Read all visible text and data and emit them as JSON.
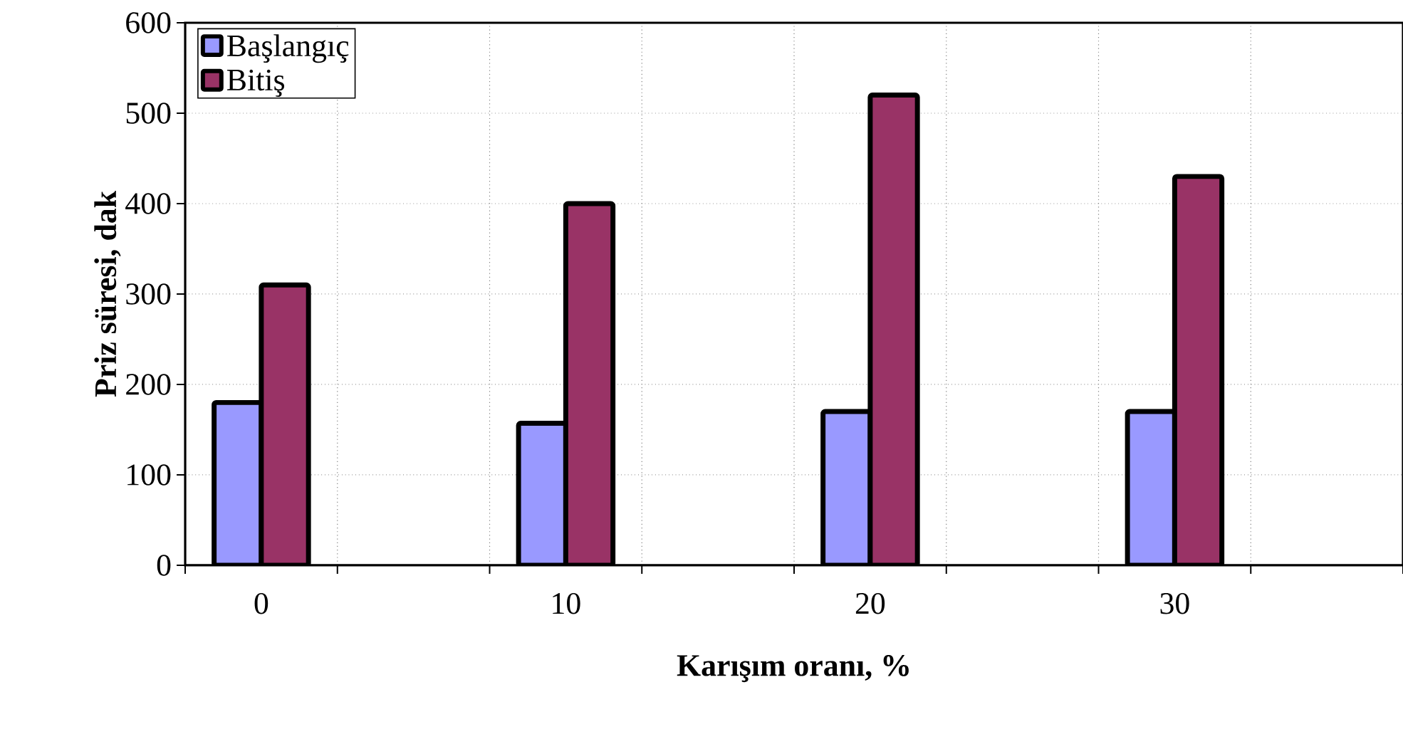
{
  "chart_data": {
    "type": "bar",
    "xlabel": "Karışım oranı, %",
    "ylabel": "Priz süresi, dak",
    "categories": [
      "0",
      null,
      "10",
      null,
      "20",
      null,
      "30",
      null
    ],
    "series": [
      {
        "name": "Başlangıç",
        "color": "#9999ff",
        "values": [
          180,
          null,
          157,
          null,
          170,
          null,
          170,
          null
        ]
      },
      {
        "name": "Bitiş",
        "color": "#993366",
        "values": [
          310,
          null,
          400,
          null,
          520,
          null,
          430,
          null
        ]
      }
    ],
    "ylim": [
      0,
      600
    ],
    "yticks": [
      0,
      100,
      200,
      300,
      400,
      500,
      600
    ],
    "grid": true,
    "legend": "top left"
  }
}
